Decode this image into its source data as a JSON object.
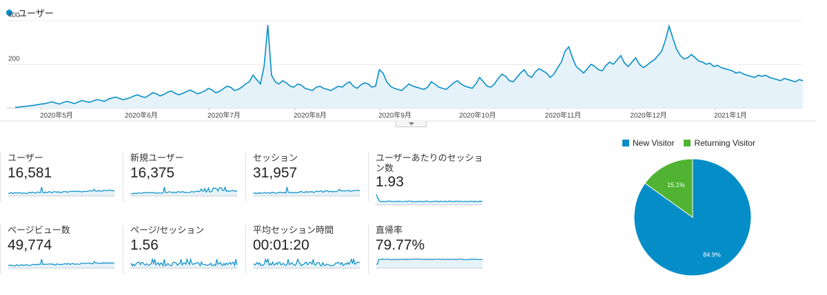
{
  "legend": {
    "label": "ユーザー",
    "color": "#058dc7"
  },
  "chart_data": [
    {
      "type": "area",
      "series": [
        {
          "name": "ユーザー"
        }
      ],
      "y_ticks": [
        "400",
        "200"
      ],
      "ylim": [
        0,
        400
      ],
      "grid": true,
      "x_labels": [
        "2020年5月",
        "2020年6月",
        "2020年7月",
        "2020年8月",
        "2020年9月",
        "2020年10月",
        "2020年11月",
        "2020年12月",
        "2021年1月"
      ],
      "values": [
        2,
        4,
        6,
        8,
        10,
        12,
        15,
        18,
        20,
        24,
        28,
        22,
        18,
        26,
        30,
        25,
        20,
        28,
        34,
        30,
        26,
        32,
        38,
        35,
        30,
        40,
        45,
        50,
        44,
        38,
        42,
        48,
        55,
        60,
        52,
        48,
        58,
        70,
        65,
        55,
        62,
        72,
        78,
        68,
        60,
        66,
        74,
        82,
        75,
        65,
        70,
        78,
        90,
        82,
        70,
        76,
        88,
        100,
        95,
        80,
        85,
        95,
        110,
        120,
        150,
        130,
        110,
        190,
        380,
        150,
        120,
        110,
        125,
        115,
        100,
        95,
        110,
        105,
        90,
        85,
        80,
        95,
        100,
        90,
        85,
        80,
        90,
        100,
        95,
        110,
        120,
        100,
        90,
        105,
        115,
        110,
        95,
        100,
        175,
        160,
        120,
        100,
        90,
        85,
        80,
        95,
        110,
        100,
        95,
        90,
        85,
        95,
        120,
        110,
        95,
        90,
        85,
        100,
        115,
        125,
        110,
        100,
        95,
        90,
        110,
        140,
        120,
        100,
        95,
        110,
        135,
        155,
        145,
        125,
        120,
        140,
        160,
        175,
        150,
        140,
        165,
        180,
        170,
        160,
        140,
        155,
        185,
        210,
        260,
        280,
        230,
        190,
        175,
        160,
        180,
        200,
        190,
        175,
        170,
        195,
        210,
        200,
        220,
        240,
        205,
        190,
        210,
        230,
        200,
        185,
        195,
        210,
        220,
        240,
        260,
        310,
        375,
        320,
        270,
        240,
        225,
        230,
        245,
        230,
        215,
        210,
        200,
        205,
        190,
        195,
        185,
        180,
        175,
        170,
        160,
        165,
        155,
        150,
        145,
        140,
        150,
        145,
        150,
        140,
        135,
        130,
        125,
        135,
        130,
        125,
        120,
        130,
        125
      ],
      "values_note_omitted": ""
    }
  ],
  "metrics": [
    {
      "label": "ユーザー",
      "value": "16,581"
    },
    {
      "label": "新規ユーザー",
      "value": "16,375"
    },
    {
      "label": "セッション",
      "value": "31,957"
    },
    {
      "label": "ユーザーあたりのセッション数",
      "value": "1.93"
    },
    {
      "label": "ページビュー数",
      "value": "49,774"
    },
    {
      "label": "ページ/セッション",
      "value": "1.56"
    },
    {
      "label": "平均セッション時間",
      "value": "00:01:20"
    },
    {
      "label": "直帰率",
      "value": "79.77%"
    }
  ],
  "pie": {
    "chart_data": {
      "type": "pie",
      "labels": [
        "New Visitor",
        "Returning Visitor"
      ],
      "values": [
        84.9,
        15.1
      ],
      "colors": [
        "#058dc7",
        "#50b432"
      ]
    },
    "slice_labels": [
      "84.9%",
      "15.1%"
    ],
    "legend": [
      "New Visitor",
      "Returning Visitor"
    ]
  }
}
